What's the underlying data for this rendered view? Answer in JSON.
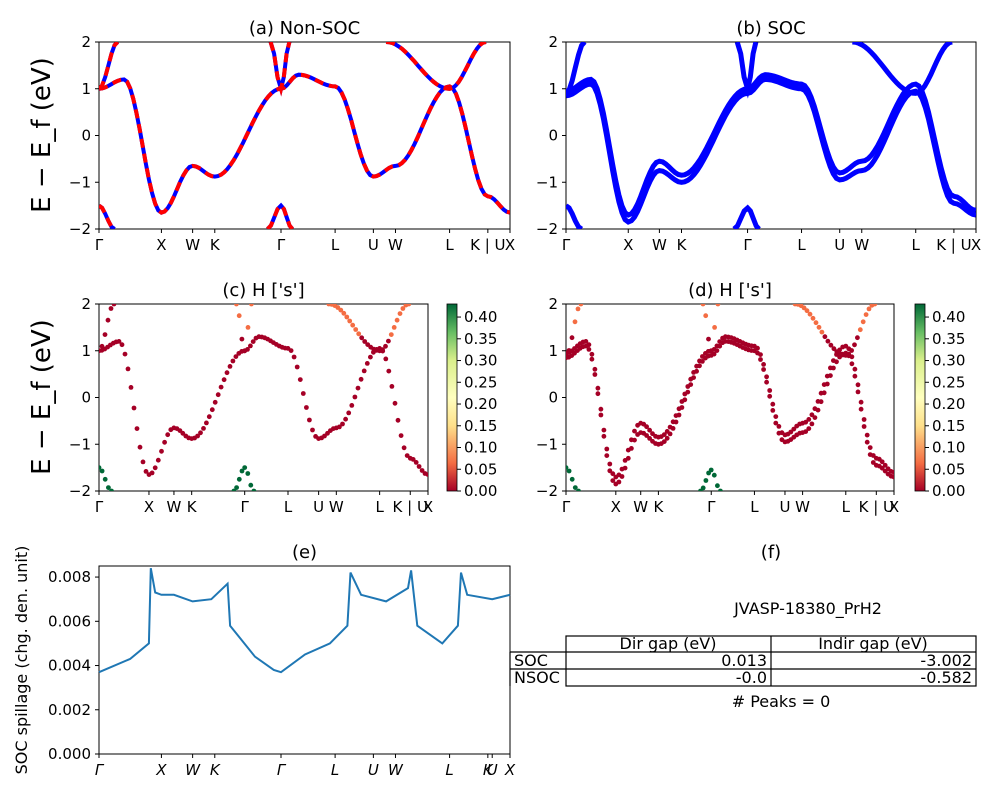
{
  "kpath": {
    "labels": [
      "Γ",
      "X",
      "W",
      "K",
      "Γ",
      "L",
      "U",
      "W",
      "L",
      "K | U",
      "X"
    ],
    "positions": [
      0,
      1.0,
      1.5,
      1.855,
      2.916,
      3.783,
      4.396,
      4.75,
      5.617,
      6.23,
      6.585
    ],
    "spillage_labels": [
      "Γ",
      "X",
      "W",
      "K",
      "Γ",
      "L",
      "U",
      "W",
      "L",
      "K",
      "U",
      "X"
    ],
    "spillage_positions": [
      0,
      1.0,
      1.5,
      1.855,
      2.916,
      3.783,
      4.396,
      4.75,
      5.617,
      6.23,
      6.3,
      6.585
    ]
  },
  "panels": {
    "a": {
      "title": "(a) Non-SOC"
    },
    "b": {
      "title": "(b) SOC"
    },
    "c": {
      "title": "(c)  H ['s']"
    },
    "d": {
      "title": "(d) H ['s']"
    },
    "e": {
      "title": "(e)"
    },
    "f": {
      "title": "(f)"
    }
  },
  "energy_ylabel": "E − E_f (eV)",
  "energy_ylim": [
    -2,
    2
  ],
  "energy_yticks": [
    "2",
    "1",
    "0",
    "−1",
    "−2"
  ],
  "colorbar_ticks": [
    "0.40",
    "0.35",
    "0.30",
    "0.25",
    "0.20",
    "0.15",
    "0.10",
    "0.05",
    "0.00"
  ],
  "colors": {
    "band_blue": "#0000ff",
    "band_red": "#ff0000",
    "spillage_line": "#1f77b4",
    "proj_low": "#a50026",
    "proj_high": "#006837"
  },
  "chart_data": [
    {
      "type": "line",
      "name": "bands_nonsoc",
      "title": "(a) Non-SOC",
      "ylabel": "E − E_f (eV)",
      "ylim": [
        -2,
        2
      ],
      "series": [
        {
          "x": [
            0,
            0.4,
            1.0,
            1.5,
            1.855,
            2.916,
            3.2,
            3.783,
            4.396,
            4.75,
            5.617,
            6.23,
            6.585
          ],
          "values": [
            1.0,
            1.2,
            -1.65,
            -0.65,
            -0.88,
            1.0,
            1.3,
            1.05,
            -0.88,
            -0.65,
            1.05,
            -1.3,
            -1.65
          ]
        },
        {
          "x": [
            0,
            0.3
          ],
          "values": [
            1.0,
            2.0
          ]
        },
        {
          "x": [
            0,
            0.25
          ],
          "values": [
            -1.5,
            -2.0
          ]
        },
        {
          "x": [
            2.7,
            2.916,
            3.1
          ],
          "values": [
            -2.0,
            -1.5,
            -2.0
          ]
        },
        {
          "x": [
            2.75,
            2.916,
            3.05
          ],
          "values": [
            2.0,
            1.0,
            2.0
          ]
        },
        {
          "x": [
            4.6,
            5.617,
            6.2
          ],
          "values": [
            2.0,
            1.0,
            2.0
          ]
        }
      ]
    },
    {
      "type": "line",
      "name": "bands_soc",
      "title": "(b) SOC",
      "ylabel": "",
      "ylim": [
        -2,
        2
      ],
      "series": [
        {
          "x": [
            0,
            0.4,
            1.0,
            1.5,
            1.855,
            2.916,
            3.2,
            3.783,
            4.396,
            4.75,
            5.617,
            6.23,
            6.585
          ],
          "values": [
            0.95,
            1.2,
            -1.7,
            -0.55,
            -0.85,
            1.0,
            1.3,
            1.1,
            -0.8,
            -0.55,
            1.1,
            -1.3,
            -1.6
          ]
        },
        {
          "x": [
            0,
            0.4,
            1.0,
            1.5,
            1.855,
            2.916,
            3.2,
            3.783,
            4.396,
            4.75,
            5.617,
            6.23,
            6.585
          ],
          "values": [
            0.85,
            1.1,
            -1.85,
            -0.75,
            -1.0,
            0.9,
            1.2,
            1.0,
            -0.95,
            -0.75,
            0.95,
            -1.45,
            -1.7
          ]
        },
        {
          "x": [
            0,
            0.3
          ],
          "values": [
            0.9,
            2.0
          ]
        },
        {
          "x": [
            0,
            0.25
          ],
          "values": [
            -1.5,
            -2.0
          ]
        },
        {
          "x": [
            2.7,
            2.916,
            3.1
          ],
          "values": [
            -2.0,
            -1.55,
            -2.0
          ]
        },
        {
          "x": [
            2.75,
            2.916,
            3.05
          ],
          "values": [
            2.0,
            1.0,
            2.0
          ]
        },
        {
          "x": [
            4.6,
            5.617,
            6.2
          ],
          "values": [
            2.0,
            0.9,
            2.0
          ]
        }
      ]
    },
    {
      "type": "scatter",
      "name": "projected_nonsoc",
      "title": "(c)  H ['s']",
      "ylim": [
        -2,
        2
      ],
      "colorbar": {
        "min": 0.0,
        "max": 0.43
      }
    },
    {
      "type": "scatter",
      "name": "projected_soc",
      "title": "(d) H ['s']",
      "ylim": [
        -2,
        2
      ],
      "colorbar": {
        "min": 0.0,
        "max": 0.43
      }
    },
    {
      "type": "line",
      "name": "soc_spillage",
      "title": "(e)",
      "ylabel": "SOC spillage (chg. den. unit)",
      "ylim": [
        0,
        0.0085
      ],
      "yticks": [
        0.0,
        0.002,
        0.004,
        0.006,
        0.008
      ],
      "series": [
        {
          "x": [
            0,
            0.5,
            0.8,
            0.83,
            0.9,
            1.0,
            1.2,
            1.5,
            1.8,
            2.06,
            2.1,
            2.5,
            2.8,
            2.916,
            3.3,
            3.7,
            3.98,
            4.03,
            4.2,
            4.6,
            4.95,
            5.0,
            5.1,
            5.5,
            5.75,
            5.8,
            5.9,
            6.3,
            6.585
          ],
          "values": [
            0.0037,
            0.0043,
            0.005,
            0.0084,
            0.0073,
            0.0072,
            0.0072,
            0.0069,
            0.007,
            0.0077,
            0.0058,
            0.0044,
            0.0038,
            0.0037,
            0.0045,
            0.005,
            0.0058,
            0.0082,
            0.0072,
            0.0069,
            0.0075,
            0.0083,
            0.0058,
            0.005,
            0.0058,
            0.0082,
            0.0072,
            0.007,
            0.0072
          ]
        }
      ]
    },
    {
      "type": "table",
      "name": "gap_table",
      "title": "(f)",
      "subtitle": "JVASP-18380_PrH2",
      "columns": [
        "Dir gap (eV)",
        "Indir gap (eV)"
      ],
      "rows": [
        {
          "label": "SOC",
          "values": [
            "0.013",
            "-3.002"
          ]
        },
        {
          "label": "NSOC",
          "values": [
            "-0.0",
            "-0.582"
          ]
        }
      ],
      "footer": "# Peaks = 0"
    }
  ]
}
